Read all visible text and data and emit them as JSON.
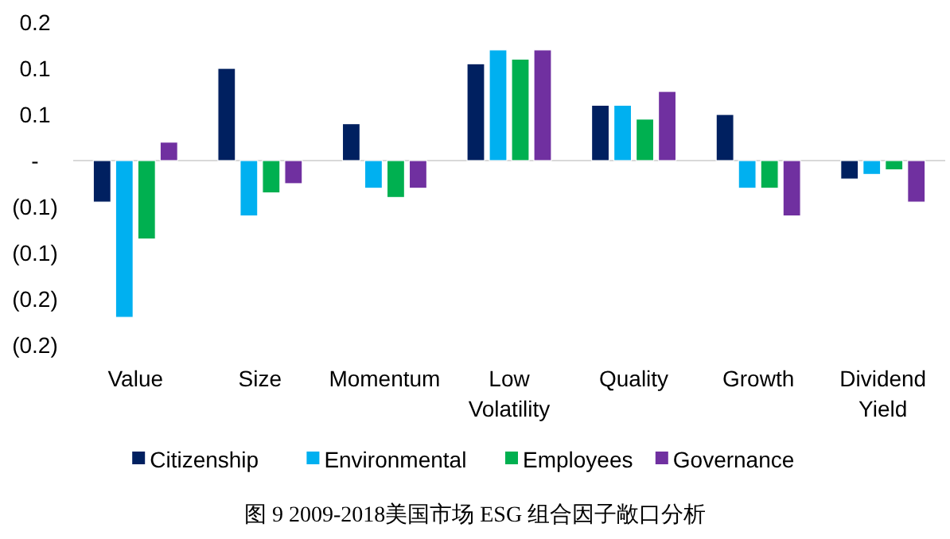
{
  "chart_data": {
    "type": "bar",
    "categories": [
      "Value",
      "Size",
      "Momentum",
      "Low Volatility",
      "Quality",
      "Growth",
      "Dividend Yield"
    ],
    "series": [
      {
        "name": "Citizenship",
        "color": "#002060",
        "values": [
          -0.045,
          0.1,
          0.04,
          0.105,
          0.06,
          0.05,
          -0.02
        ]
      },
      {
        "name": "Environmental",
        "color": "#00b0f0",
        "values": [
          -0.17,
          -0.06,
          -0.03,
          0.12,
          0.06,
          -0.03,
          -0.015
        ]
      },
      {
        "name": "Employees",
        "color": "#00b050",
        "values": [
          -0.085,
          -0.035,
          -0.04,
          0.11,
          0.045,
          -0.03,
          -0.01
        ]
      },
      {
        "name": "Governance",
        "color": "#7030a0",
        "values": [
          0.02,
          -0.025,
          -0.03,
          0.12,
          0.075,
          -0.06,
          -0.045
        ]
      }
    ],
    "ylim": [
      -0.2,
      0.15
    ],
    "yticks": [
      {
        "value": 0.15,
        "label": "0.2"
      },
      {
        "value": 0.1,
        "label": "0.1"
      },
      {
        "value": 0.05,
        "label": "0.1"
      },
      {
        "value": 0,
        "label": "-"
      },
      {
        "value": -0.05,
        "label": "(0.1)"
      },
      {
        "value": -0.1,
        "label": "(0.1)"
      },
      {
        "value": -0.15,
        "label": "(0.2)"
      },
      {
        "value": -0.2,
        "label": "(0.2)"
      }
    ],
    "legend": "bottom",
    "annotations": [
      "图 9 2009-2018美国市场 ESG 组合因子敞口分析"
    ]
  }
}
